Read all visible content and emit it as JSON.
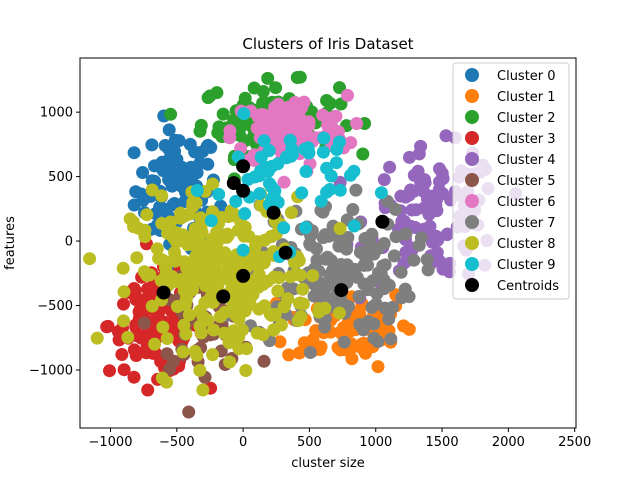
{
  "chart_data": {
    "type": "scatter",
    "title": "Clusters of Iris Dataset",
    "xlabel": "cluster size",
    "ylabel": "features",
    "xlim": [
      -1230,
      2510
    ],
    "ylim": [
      -1450,
      1420
    ],
    "xticks": [
      -1000,
      -500,
      0,
      500,
      1000,
      1500,
      2000,
      2500
    ],
    "yticks": [
      -1000,
      -500,
      0,
      500,
      1000
    ],
    "xtick_labels": [
      "−1000",
      "−500",
      "0",
      "500",
      "1000",
      "1500",
      "2000",
      "2500"
    ],
    "ytick_labels": [
      "−1000",
      "−500",
      "0",
      "500",
      "1000"
    ],
    "grid": false,
    "legend_position": "top-right",
    "series": [
      {
        "name": "Cluster 0",
        "color": "#1f77b4",
        "center": [
          -500,
          400
        ],
        "spread": [
          260,
          380
        ],
        "n": 90
      },
      {
        "name": "Cluster 1",
        "color": "#ff7f0e",
        "center": [
          800,
          -650
        ],
        "spread": [
          400,
          260
        ],
        "n": 90
      },
      {
        "name": "Cluster 2",
        "color": "#2ca02c",
        "center": [
          200,
          950
        ],
        "spread": [
          430,
          230
        ],
        "n": 100
      },
      {
        "name": "Cluster 3",
        "color": "#d62728",
        "center": [
          -650,
          -650
        ],
        "spread": [
          300,
          320
        ],
        "n": 110
      },
      {
        "name": "Cluster 4",
        "color": "#9467bd",
        "center": [
          1450,
          200
        ],
        "spread": [
          420,
          420
        ],
        "n": 110
      },
      {
        "name": "Cluster 5",
        "color": "#8c564b",
        "center": [
          -300,
          -650
        ],
        "spread": [
          320,
          280
        ],
        "n": 60
      },
      {
        "name": "Cluster 6",
        "color": "#e377c2",
        "center": [
          350,
          850
        ],
        "spread": [
          360,
          230
        ],
        "n": 110
      },
      {
        "name": "Cluster 7",
        "color": "#7f7f7f",
        "center": [
          650,
          -250
        ],
        "spread": [
          520,
          460
        ],
        "n": 170
      },
      {
        "name": "Cluster 8",
        "color": "#bcbd22",
        "center": [
          -150,
          -250
        ],
        "spread": [
          560,
          480
        ],
        "n": 300
      },
      {
        "name": "Cluster 9",
        "color": "#17becf",
        "center": [
          300,
          450
        ],
        "spread": [
          450,
          400
        ],
        "n": 60
      }
    ],
    "centroids": {
      "name": "Centroids",
      "color": "#000000",
      "points": [
        [
          0,
          580
        ],
        [
          -70,
          450
        ],
        [
          0,
          390
        ],
        [
          230,
          220
        ],
        [
          1050,
          150
        ],
        [
          320,
          -90
        ],
        [
          0,
          -270
        ],
        [
          -600,
          -400
        ],
        [
          -150,
          -430
        ],
        [
          740,
          -380
        ]
      ]
    }
  }
}
